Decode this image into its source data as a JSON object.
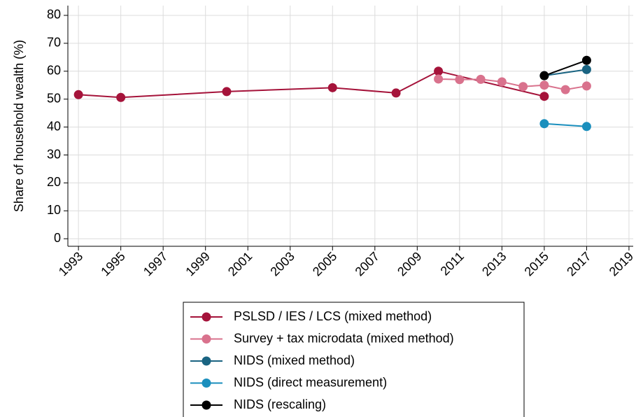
{
  "chart_data": {
    "type": "line",
    "y_label": "Share of household wealth (%)",
    "xlim": [
      1992.5,
      2019.2
    ],
    "xticks": [
      1993,
      1995,
      1997,
      1999,
      2001,
      2003,
      2005,
      2007,
      2009,
      2011,
      2013,
      2015,
      2017,
      2019
    ],
    "ylim": [
      -2.7,
      83.5
    ],
    "yticks": [
      0,
      10,
      20,
      30,
      40,
      50,
      60,
      70,
      80
    ],
    "grid": true,
    "series": [
      {
        "name": "PSLSD / IES / LCS (mixed method)",
        "color": "#a5133a",
        "x": [
          1993,
          1995,
          2000,
          2005,
          2008,
          2010,
          2015
        ],
        "values": [
          51.6,
          50.6,
          52.7,
          54.1,
          52.2,
          60.0,
          51.0
        ]
      },
      {
        "name": "Survey + tax microdata (mixed method)",
        "color": "#d9728d",
        "x": [
          2010,
          2011,
          2012,
          2013,
          2014,
          2015,
          2016,
          2017
        ],
        "values": [
          57.2,
          57.0,
          57.1,
          56.2,
          54.5,
          55.0,
          53.4,
          54.7
        ]
      },
      {
        "name": "NIDS (mixed method)",
        "color": "#1a6482",
        "x": [
          2015,
          2017
        ],
        "values": [
          58.4,
          60.6
        ]
      },
      {
        "name": "NIDS (direct measurement)",
        "color": "#1b8fbd",
        "x": [
          2015,
          2017
        ],
        "values": [
          41.2,
          40.2
        ]
      },
      {
        "name": "NIDS (rescaling)",
        "color": "#000000",
        "x": [
          2015,
          2017
        ],
        "values": [
          58.4,
          63.9
        ]
      }
    ]
  }
}
